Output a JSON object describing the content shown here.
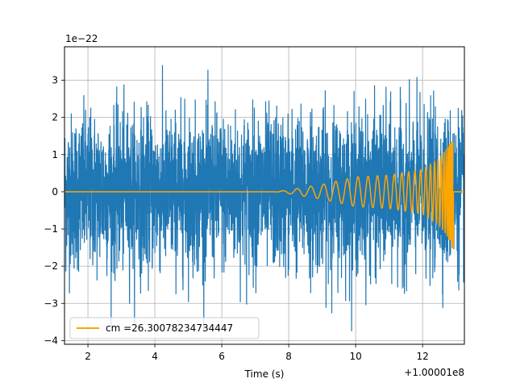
{
  "chart_data": {
    "type": "line",
    "xlabel": "Time (s)",
    "x_offset_label": "+1.00001e8",
    "y_scale_label": "1e−22",
    "xlim": [
      1.3,
      13.25
    ],
    "ylim": [
      -4.1,
      3.9
    ],
    "xticks": [
      2,
      4,
      6,
      8,
      10,
      12
    ],
    "yticks": [
      -4,
      -3,
      -2,
      -1,
      0,
      1,
      2,
      3
    ],
    "xtick_labels": [
      "2",
      "4",
      "6",
      "8",
      "10",
      "12"
    ],
    "ytick_labels": [
      "−4",
      "−3",
      "−2",
      "−1",
      "0",
      "1",
      "2",
      "3"
    ],
    "grid": true,
    "legend_position": "lower left",
    "colors": {
      "noise": "#1f77b4",
      "template": "#ffa500"
    },
    "series": [
      {
        "kind": "noise",
        "x_range": [
          1.3,
          13.25
        ],
        "typical_amplitude": 2.0,
        "max_value": 3.55,
        "min_value": -3.75
      },
      {
        "kind": "chirp",
        "name": "cm =26.30078234734447",
        "visible_onset": 7.6,
        "merger_time": 12.9,
        "peak_positive": 1.35,
        "peak_negative": -1.5,
        "amplitude_at_x": [
          {
            "x": 8.0,
            "amplitude": 0.05
          },
          {
            "x": 9.0,
            "amplitude": 0.2
          },
          {
            "x": 10.0,
            "amplitude": 0.4
          },
          {
            "x": 11.0,
            "amplitude": 0.45
          },
          {
            "x": 12.0,
            "amplitude": 0.6
          },
          {
            "x": 12.5,
            "amplitude": 0.9
          },
          {
            "x": 12.9,
            "amplitude": 1.4
          }
        ]
      }
    ]
  }
}
